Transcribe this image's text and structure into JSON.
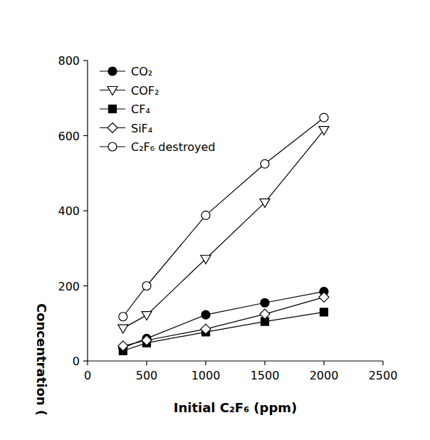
{
  "chart_data": {
    "type": "line",
    "x_label": "Initial C₂F₆ (ppm)",
    "y_label": "Concentration (",
    "x": [
      300,
      500,
      1000,
      1500,
      2000
    ],
    "series": [
      {
        "name": "CO₂",
        "color": "#000000",
        "marker": "filled-circle",
        "values": [
          35,
          60,
          123,
          155,
          185
        ]
      },
      {
        "name": "COF₂",
        "color": "#000000",
        "marker": "open-triangle-down",
        "values": [
          87,
          122,
          272,
          422,
          615
        ]
      },
      {
        "name": "CF₄",
        "color": "#000000",
        "marker": "filled-square",
        "values": [
          27,
          48,
          77,
          105,
          130
        ]
      },
      {
        "name": "SiF₄",
        "color": "#000000",
        "marker": "open-diamond",
        "values": [
          40,
          55,
          85,
          125,
          170
        ]
      },
      {
        "name": "C₂F₆ destroyed",
        "color": "#000000",
        "marker": "open-circle",
        "values": [
          118,
          200,
          388,
          525,
          648
        ]
      }
    ],
    "xlim": [
      0,
      2500
    ],
    "ylim": [
      0,
      800
    ],
    "xticks": [
      0,
      500,
      1000,
      1500,
      2000,
      2500
    ],
    "yticks": [
      0,
      200,
      400,
      600,
      800
    ],
    "grid": false,
    "legend": "top-left"
  }
}
